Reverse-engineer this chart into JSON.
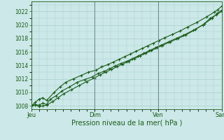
{
  "title": "Pression niveau de la mer( hPa )",
  "bg_color": "#cce8e8",
  "grid_color": "#aacece",
  "line_color": "#1a5c1a",
  "vline_color": "#6a8a8a",
  "ylim": [
    1007.5,
    1023.5
  ],
  "yticks": [
    1008,
    1010,
    1012,
    1014,
    1016,
    1018,
    1020,
    1022
  ],
  "xtick_labels": [
    "Jeu",
    "Dim",
    "Ven",
    "Sam"
  ],
  "xtick_positions": [
    0,
    0.333,
    0.667,
    1.0
  ],
  "series1_x": [
    0.0,
    0.02,
    0.04,
    0.06,
    0.08,
    0.1,
    0.13,
    0.16,
    0.2,
    0.24,
    0.28,
    0.32,
    0.35,
    0.38,
    0.41,
    0.44,
    0.47,
    0.5,
    0.53,
    0.56,
    0.59,
    0.62,
    0.65,
    0.68,
    0.72,
    0.76,
    0.8,
    0.85,
    0.9,
    0.94,
    0.97,
    1.0
  ],
  "series1_y": [
    1008.0,
    1008.2,
    1008.1,
    1008.4,
    1008.2,
    1009.0,
    1009.5,
    1010.2,
    1010.8,
    1011.5,
    1011.9,
    1012.3,
    1012.8,
    1013.1,
    1013.5,
    1013.9,
    1014.3,
    1014.6,
    1015.0,
    1015.4,
    1015.8,
    1016.2,
    1016.6,
    1017.0,
    1017.5,
    1018.0,
    1018.5,
    1019.2,
    1020.0,
    1021.0,
    1021.5,
    1022.0
  ],
  "series2_x": [
    0.0,
    0.02,
    0.04,
    0.06,
    0.08,
    0.12,
    0.15,
    0.18,
    0.22,
    0.26,
    0.3,
    0.34,
    0.37,
    0.4,
    0.43,
    0.46,
    0.49,
    0.52,
    0.55,
    0.58,
    0.61,
    0.64,
    0.67,
    0.7,
    0.74,
    0.78,
    0.82,
    0.87,
    0.92,
    0.96,
    0.98,
    1.0
  ],
  "series2_y": [
    1008.0,
    1008.5,
    1009.0,
    1009.2,
    1008.8,
    1010.0,
    1010.8,
    1011.5,
    1012.0,
    1012.5,
    1013.0,
    1013.3,
    1013.8,
    1014.1,
    1014.5,
    1014.9,
    1015.3,
    1015.7,
    1016.1,
    1016.5,
    1016.9,
    1017.3,
    1017.7,
    1018.1,
    1018.6,
    1019.1,
    1019.7,
    1020.4,
    1021.2,
    1021.9,
    1022.3,
    1022.8
  ],
  "series3_x": [
    0.0,
    0.02,
    0.04,
    0.06,
    0.08,
    0.11,
    0.14,
    0.17,
    0.21,
    0.25,
    0.29,
    0.33,
    0.36,
    0.39,
    0.42,
    0.45,
    0.48,
    0.51,
    0.54,
    0.57,
    0.6,
    0.63,
    0.66,
    0.69,
    0.73,
    0.77,
    0.81,
    0.86,
    0.91,
    0.95,
    0.975,
    1.0
  ],
  "series3_y": [
    1008.0,
    1008.1,
    1007.9,
    1008.0,
    1008.1,
    1008.6,
    1009.2,
    1009.8,
    1010.4,
    1011.0,
    1011.6,
    1012.1,
    1012.6,
    1013.0,
    1013.4,
    1013.8,
    1014.2,
    1014.6,
    1015.0,
    1015.4,
    1015.8,
    1016.2,
    1016.6,
    1017.0,
    1017.5,
    1018.0,
    1018.5,
    1019.3,
    1020.2,
    1021.0,
    1021.7,
    1022.2
  ]
}
